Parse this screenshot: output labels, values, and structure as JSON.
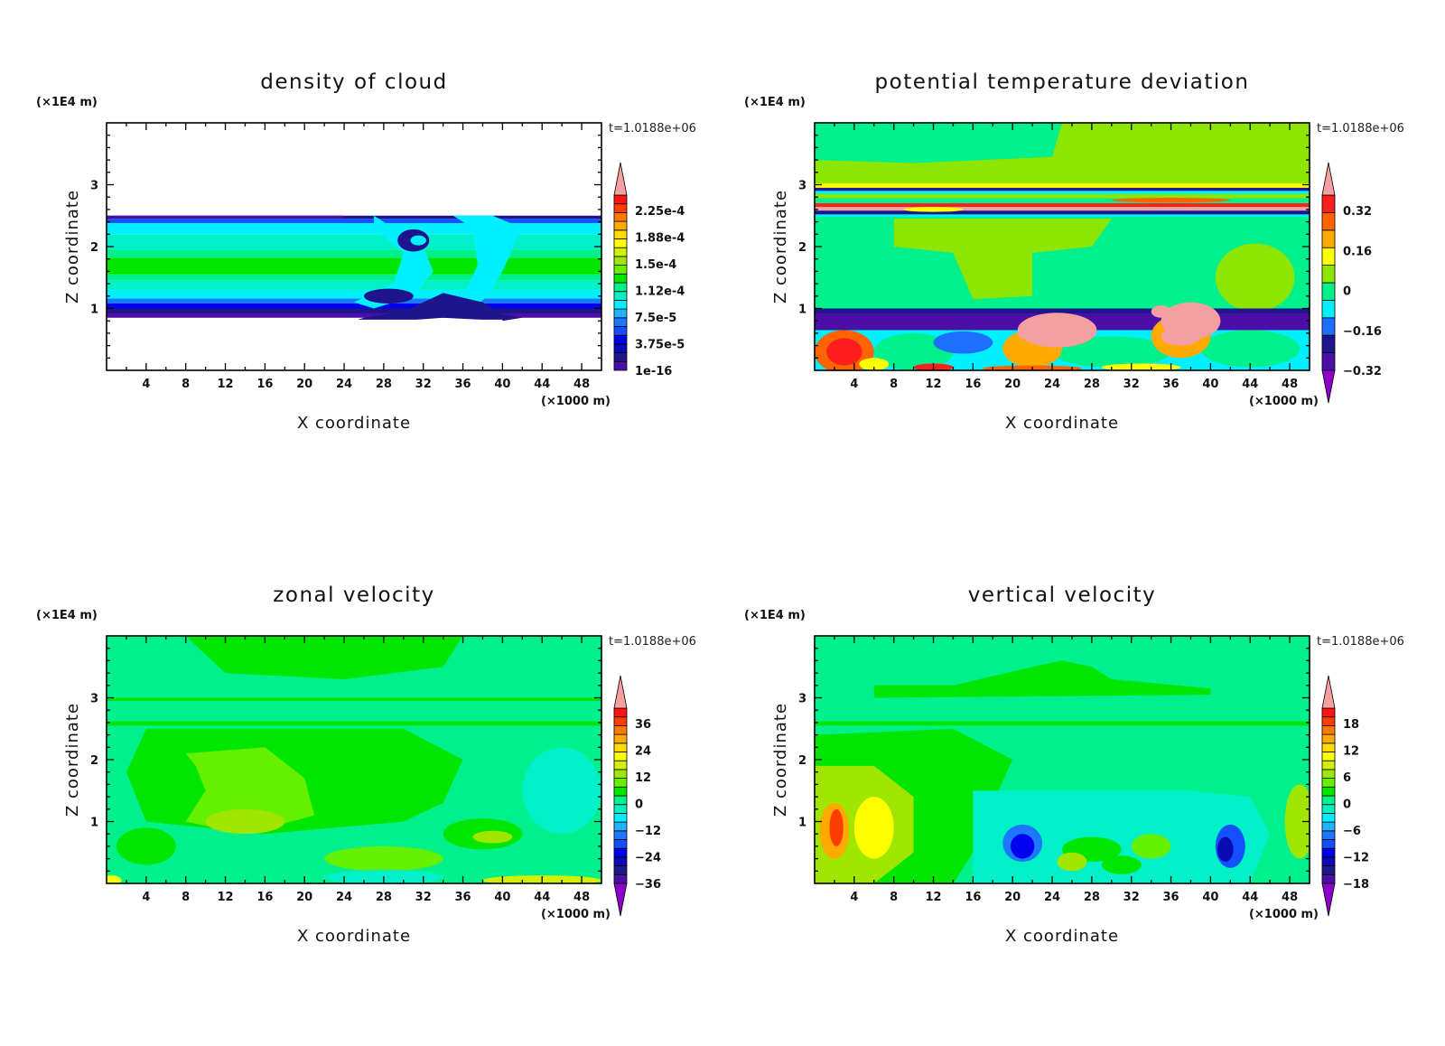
{
  "chart_data": [
    {
      "type": "heatmap",
      "title": "density of cloud",
      "xlabel": "X coordinate",
      "ylabel": "Z coordinate",
      "x_scale_label": "(×1000 m)",
      "y_scale_label": "(×1E4 m)",
      "time_label": "t=1.0188e+06",
      "xlim": [
        0,
        50
      ],
      "ylim": [
        0,
        4
      ],
      "xticks": [
        "4",
        "8",
        "12",
        "16",
        "20",
        "24",
        "28",
        "32",
        "36",
        "40",
        "44",
        "48"
      ],
      "yticks": [
        "1",
        "2",
        "3"
      ],
      "colorbar": {
        "bins": 20,
        "over": true,
        "under": false,
        "labels": [
          "1e-16",
          "3.75e-5",
          "7.5e-5",
          "1.12e-4",
          "1.5e-4",
          "1.88e-4",
          "2.25e-4"
        ]
      },
      "background": "#ffffff"
    },
    {
      "type": "heatmap",
      "title": "potential temperature deviation",
      "xlabel": "X coordinate",
      "ylabel": "Z coordinate",
      "x_scale_label": "(×1000 m)",
      "y_scale_label": "(×1E4 m)",
      "time_label": "t=1.0188e+06",
      "xlim": [
        0,
        50
      ],
      "ylim": [
        0,
        4
      ],
      "xticks": [
        "4",
        "8",
        "12",
        "16",
        "20",
        "24",
        "28",
        "32",
        "36",
        "40",
        "44",
        "48"
      ],
      "yticks": [
        "1",
        "2",
        "3"
      ],
      "colorbar": {
        "bins": 10,
        "over": true,
        "under": true,
        "labels": [
          "−0.32",
          "−0.16",
          "0",
          "0.16",
          "0.32"
        ]
      },
      "background": "#00f08c"
    },
    {
      "type": "heatmap",
      "title": "zonal velocity",
      "xlabel": "X coordinate",
      "ylabel": "Z coordinate",
      "x_scale_label": "(×1000 m)",
      "y_scale_label": "(×1E4 m)",
      "time_label": "t=1.0188e+06",
      "xlim": [
        0,
        50
      ],
      "ylim": [
        0,
        4
      ],
      "xticks": [
        "4",
        "8",
        "12",
        "16",
        "20",
        "24",
        "28",
        "32",
        "36",
        "40",
        "44",
        "48"
      ],
      "yticks": [
        "1",
        "2",
        "3"
      ],
      "colorbar": {
        "bins": 20,
        "over": true,
        "under": true,
        "labels": [
          "−36",
          "−24",
          "−12",
          "0",
          "12",
          "24",
          "36"
        ]
      },
      "background": "#00f08c"
    },
    {
      "type": "heatmap",
      "title": "vertical velocity",
      "xlabel": "X coordinate",
      "ylabel": "Z coordinate",
      "x_scale_label": "(×1000 m)",
      "y_scale_label": "(×1E4 m)",
      "time_label": "t=1.0188e+06",
      "xlim": [
        0,
        50
      ],
      "ylim": [
        0,
        4
      ],
      "xticks": [
        "4",
        "8",
        "12",
        "16",
        "20",
        "24",
        "28",
        "32",
        "36",
        "40",
        "44",
        "48"
      ],
      "yticks": [
        "1",
        "2",
        "3"
      ],
      "colorbar": {
        "bins": 20,
        "over": true,
        "under": true,
        "labels": [
          "−18",
          "−12",
          "−6",
          "0",
          "6",
          "12",
          "18"
        ]
      },
      "background": "#00f08c"
    }
  ],
  "colors": {
    "palette20": [
      "#4b0fa8",
      "#1e148c",
      "#0a0ab4",
      "#0000f0",
      "#1450ff",
      "#1e78ff",
      "#1eb4ff",
      "#00f0ff",
      "#00f0c8",
      "#00f08c",
      "#00e600",
      "#64f000",
      "#a0e600",
      "#d2f000",
      "#ffff00",
      "#ffdc00",
      "#ffaa00",
      "#ff7800",
      "#ff3c00",
      "#ff1414"
    ],
    "palette10": [
      "#4b0fa8",
      "#1e148c",
      "#1e6eff",
      "#00f0ff",
      "#00f08c",
      "#8ce600",
      "#ffff00",
      "#ffaa00",
      "#ff6400",
      "#ff1e1e"
    ],
    "over": "#f5a0a0",
    "under": "#8c00c8"
  }
}
